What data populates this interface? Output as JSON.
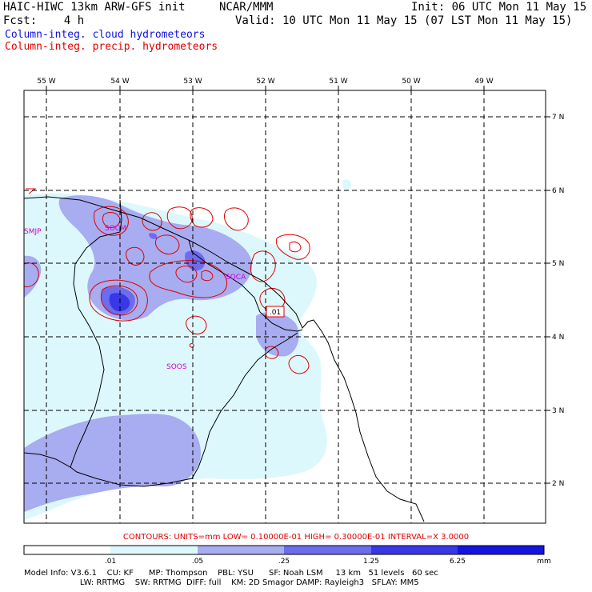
{
  "header": {
    "line1_left": "HAIC-HIWC 13km ARW-GFS init",
    "line1_mid": "NCAR/MMM",
    "line1_right": "Init: 06 UTC Mon 11 May 15",
    "line2_left": "Fcst:    4 h",
    "line2_right": "Valid: 10 UTC Mon 11 May 15 (07 LST Mon 11 May 15)",
    "legend_cloud": "Column-integ. cloud hydrometeors",
    "legend_precip": "Column-integ. precip. hydrometeors"
  },
  "colors": {
    "cloud_legend": "#1010e0",
    "precip": "#e00000",
    "station": "#cc00cc",
    "fill_level_1": "#dcf8fc",
    "fill_level_2": "#a8acf0",
    "fill_level_3": "#6c6cee",
    "fill_level_4": "#3838e8",
    "fill_level_5": "#1414e0"
  },
  "map": {
    "lon_labels": [
      "55 W",
      "54 W",
      "53 W",
      "52 W",
      "51 W",
      "50 W",
      "49 W"
    ],
    "lat_labels": [
      "7 N",
      "6 N",
      "5 N",
      "4 N",
      "3 N",
      "2 N"
    ],
    "stations": [
      "SMJP",
      "SOCM",
      "SOCA",
      "SOOS"
    ],
    "contour_label": ".01"
  },
  "contours_info": "CONTOURS:  UNITS=mm  LOW= 0.10000E-01  HIGH= 0.30000E-01  INTERVAL=X  3.0000",
  "colorbar": {
    "ticks": [
      ".01",
      ".05",
      ".25",
      "1.25",
      "6.25"
    ],
    "units": "mm"
  },
  "footer": {
    "line1": "Model Info: V3.6.1    CU: KF      MP: Thompson    PBL: YSU      SF: Noah LSM     13 km   51 levels   60 sec",
    "line2": "                      LW: RRTMG    SW: RRTMG  DIFF: full    KM: 2D Smagor DAMP: Rayleigh3   SFLAY: MM5"
  }
}
